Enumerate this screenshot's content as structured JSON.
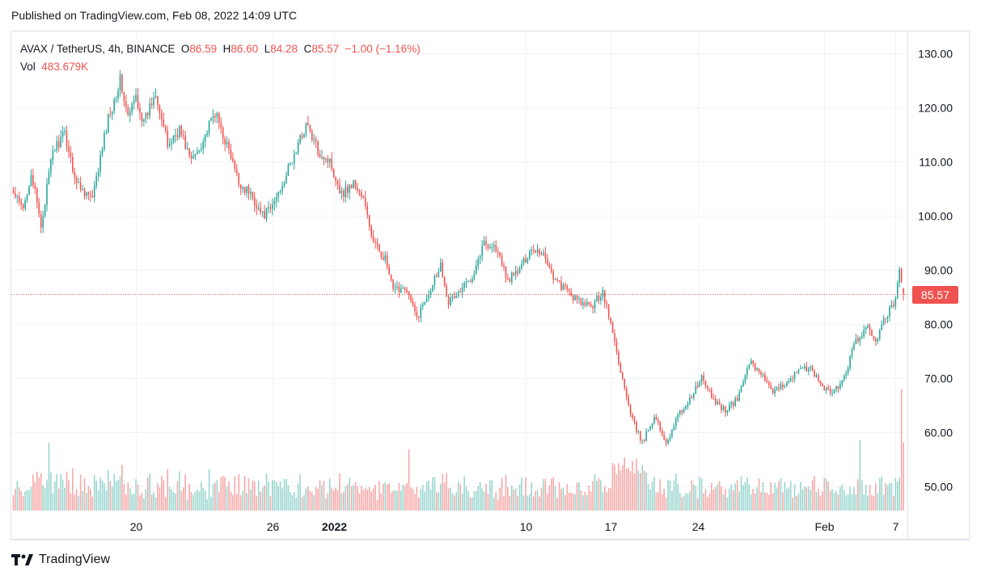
{
  "header": {
    "published": "Published on TradingView.com, Feb 08, 2022 14:09 UTC"
  },
  "legend": {
    "symbol": "AVAX / TetherUS, 4h, BINANCE",
    "o_label": "O",
    "o_value": "86.59",
    "h_label": "H",
    "h_value": "86.60",
    "l_label": "L",
    "l_value": "84.28",
    "c_label": "C",
    "c_value": "85.57",
    "change": "−1.00 (−1.16%)",
    "vol_label": "Vol",
    "vol_value": "483.679K"
  },
  "price_tag": "85.57",
  "footer": {
    "brand": "TradingView"
  },
  "colors": {
    "up": "#26a69a",
    "down": "#ef5350",
    "vol_up": "#9ad6cf",
    "vol_down": "#f5a9a8",
    "grid": "#f0f3fa",
    "text": "#131722"
  },
  "chart_data": {
    "type": "candlestick",
    "symbol": "AVAX / TetherUS",
    "interval": "4h",
    "exchange": "BINANCE",
    "x_ticks": [
      "20",
      "26",
      "2022",
      "10",
      "17",
      "24",
      "Feb",
      "7"
    ],
    "y_ticks": [
      130,
      120,
      110,
      100,
      90,
      80,
      70,
      60,
      50
    ],
    "ylim": [
      45.5,
      134
    ],
    "last_price": 85.57,
    "grid": true,
    "anchors": [
      [
        0,
        104
      ],
      [
        5,
        101
      ],
      [
        9,
        108
      ],
      [
        14,
        98
      ],
      [
        20,
        112
      ],
      [
        26,
        115
      ],
      [
        32,
        106
      ],
      [
        40,
        103
      ],
      [
        48,
        118
      ],
      [
        54,
        125
      ],
      [
        58,
        118
      ],
      [
        62,
        122
      ],
      [
        66,
        117
      ],
      [
        72,
        123
      ],
      [
        78,
        113
      ],
      [
        84,
        116
      ],
      [
        90,
        110
      ],
      [
        96,
        114
      ],
      [
        102,
        119
      ],
      [
        108,
        113
      ],
      [
        114,
        106
      ],
      [
        120,
        104
      ],
      [
        126,
        100
      ],
      [
        130,
        101
      ],
      [
        136,
        106
      ],
      [
        142,
        111
      ],
      [
        148,
        117
      ],
      [
        154,
        112
      ],
      [
        160,
        110
      ],
      [
        166,
        104
      ],
      [
        172,
        106
      ],
      [
        177,
        103
      ],
      [
        182,
        95
      ],
      [
        188,
        92
      ],
      [
        192,
        86
      ],
      [
        198,
        87
      ],
      [
        204,
        81
      ],
      [
        210,
        86
      ],
      [
        216,
        91
      ],
      [
        220,
        84
      ],
      [
        226,
        86
      ],
      [
        232,
        89
      ],
      [
        238,
        95
      ],
      [
        244,
        94
      ],
      [
        250,
        88
      ],
      [
        256,
        90
      ],
      [
        262,
        94
      ],
      [
        268,
        93
      ],
      [
        274,
        88
      ],
      [
        280,
        86
      ],
      [
        286,
        84
      ],
      [
        292,
        83
      ],
      [
        298,
        86
      ],
      [
        302,
        80
      ],
      [
        306,
        73
      ],
      [
        312,
        63
      ],
      [
        318,
        58
      ],
      [
        324,
        63
      ],
      [
        330,
        58
      ],
      [
        336,
        63
      ],
      [
        342,
        66
      ],
      [
        348,
        70
      ],
      [
        354,
        66
      ],
      [
        360,
        64
      ],
      [
        366,
        66
      ],
      [
        372,
        73
      ],
      [
        378,
        71
      ],
      [
        384,
        67
      ],
      [
        390,
        69
      ],
      [
        396,
        71
      ],
      [
        402,
        72
      ],
      [
        408,
        69
      ],
      [
        414,
        67
      ],
      [
        420,
        70
      ],
      [
        426,
        77
      ],
      [
        432,
        79
      ],
      [
        436,
        77
      ],
      [
        442,
        82
      ],
      [
        446,
        84
      ],
      [
        448,
        90
      ],
      [
        450,
        85.57
      ]
    ],
    "volume_notes": "Volume histogram along the bottom; spikes near Jan 22 and Feb 7 (last bar 483.679K)"
  }
}
